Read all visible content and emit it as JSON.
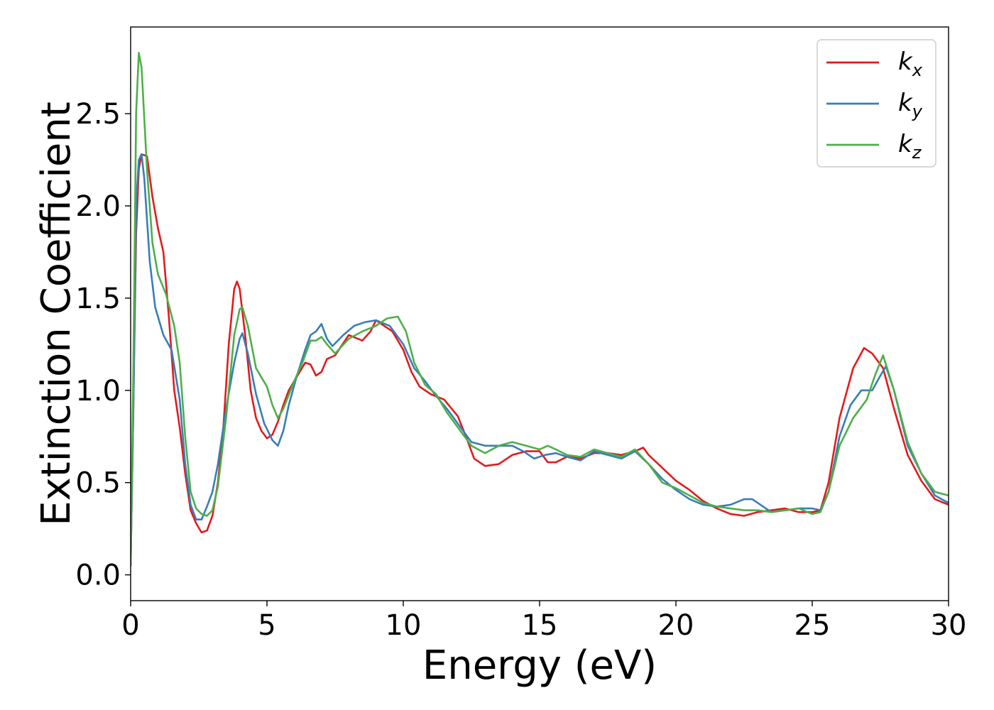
{
  "chart_data": {
    "type": "line",
    "title": "",
    "xlabel": "Energy (eV)",
    "ylabel": "Extinction Coefficient",
    "xlim": [
      0,
      30
    ],
    "ylim": [
      -0.14,
      2.97
    ],
    "xticks": [
      0,
      5,
      10,
      15,
      20,
      25,
      30
    ],
    "xtick_labels": [
      "0",
      "5",
      "10",
      "15",
      "20",
      "25",
      "30"
    ],
    "yticks": [
      0.0,
      0.5,
      1.0,
      1.5,
      2.0,
      2.5
    ],
    "ytick_labels": [
      "0.0",
      "0.5",
      "1.0",
      "1.5",
      "2.0",
      "2.5"
    ],
    "grid": false,
    "legend_position": "top-right",
    "series": [
      {
        "name": "k_x",
        "legend_base": "k",
        "legend_sub": "x",
        "color": "#e41a1c",
        "points": [
          [
            0,
            0.05
          ],
          [
            0.1,
            0.9
          ],
          [
            0.2,
            1.85
          ],
          [
            0.3,
            2.2
          ],
          [
            0.4,
            2.28
          ],
          [
            0.6,
            2.27
          ],
          [
            0.8,
            2.05
          ],
          [
            1.0,
            1.88
          ],
          [
            1.2,
            1.75
          ],
          [
            1.4,
            1.4
          ],
          [
            1.6,
            1.0
          ],
          [
            1.8,
            0.8
          ],
          [
            2.0,
            0.55
          ],
          [
            2.2,
            0.35
          ],
          [
            2.4,
            0.28
          ],
          [
            2.6,
            0.23
          ],
          [
            2.8,
            0.24
          ],
          [
            3.0,
            0.32
          ],
          [
            3.2,
            0.5
          ],
          [
            3.4,
            0.8
          ],
          [
            3.6,
            1.25
          ],
          [
            3.8,
            1.55
          ],
          [
            3.9,
            1.59
          ],
          [
            4.0,
            1.55
          ],
          [
            4.2,
            1.3
          ],
          [
            4.4,
            1.0
          ],
          [
            4.6,
            0.85
          ],
          [
            4.8,
            0.78
          ],
          [
            5.0,
            0.74
          ],
          [
            5.2,
            0.76
          ],
          [
            5.4,
            0.83
          ],
          [
            5.6,
            0.92
          ],
          [
            5.8,
            1.0
          ],
          [
            6.0,
            1.05
          ],
          [
            6.2,
            1.1
          ],
          [
            6.4,
            1.15
          ],
          [
            6.6,
            1.14
          ],
          [
            6.8,
            1.08
          ],
          [
            7.0,
            1.1
          ],
          [
            7.2,
            1.17
          ],
          [
            7.5,
            1.19
          ],
          [
            8.0,
            1.3
          ],
          [
            8.5,
            1.27
          ],
          [
            8.8,
            1.32
          ],
          [
            9.0,
            1.38
          ],
          [
            9.3,
            1.35
          ],
          [
            9.6,
            1.32
          ],
          [
            10.0,
            1.22
          ],
          [
            10.3,
            1.1
          ],
          [
            10.6,
            1.02
          ],
          [
            11.0,
            0.98
          ],
          [
            11.5,
            0.95
          ],
          [
            12.0,
            0.86
          ],
          [
            12.3,
            0.75
          ],
          [
            12.6,
            0.63
          ],
          [
            13.0,
            0.59
          ],
          [
            13.5,
            0.6
          ],
          [
            14.0,
            0.65
          ],
          [
            14.5,
            0.67
          ],
          [
            15.0,
            0.67
          ],
          [
            15.3,
            0.61
          ],
          [
            15.6,
            0.61
          ],
          [
            16.0,
            0.64
          ],
          [
            16.5,
            0.63
          ],
          [
            17.0,
            0.66
          ],
          [
            17.5,
            0.66
          ],
          [
            18.0,
            0.65
          ],
          [
            18.5,
            0.67
          ],
          [
            18.8,
            0.69
          ],
          [
            19.0,
            0.65
          ],
          [
            19.5,
            0.58
          ],
          [
            20.0,
            0.51
          ],
          [
            20.5,
            0.46
          ],
          [
            21.0,
            0.4
          ],
          [
            21.5,
            0.36
          ],
          [
            22.0,
            0.33
          ],
          [
            22.5,
            0.32
          ],
          [
            23.0,
            0.34
          ],
          [
            23.5,
            0.35
          ],
          [
            24.0,
            0.36
          ],
          [
            24.5,
            0.34
          ],
          [
            25.0,
            0.34
          ],
          [
            25.3,
            0.35
          ],
          [
            25.6,
            0.5
          ],
          [
            26.0,
            0.85
          ],
          [
            26.5,
            1.12
          ],
          [
            26.9,
            1.23
          ],
          [
            27.2,
            1.2
          ],
          [
            27.6,
            1.12
          ],
          [
            28.0,
            0.9
          ],
          [
            28.5,
            0.65
          ],
          [
            29.0,
            0.51
          ],
          [
            29.5,
            0.41
          ],
          [
            30.0,
            0.38
          ]
        ]
      },
      {
        "name": "k_y",
        "legend_base": "k",
        "legend_sub": "y",
        "color": "#377eb8",
        "points": [
          [
            0,
            0.05
          ],
          [
            0.1,
            0.9
          ],
          [
            0.2,
            2.0
          ],
          [
            0.3,
            2.25
          ],
          [
            0.4,
            2.28
          ],
          [
            0.5,
            2.15
          ],
          [
            0.7,
            1.7
          ],
          [
            0.9,
            1.45
          ],
          [
            1.2,
            1.3
          ],
          [
            1.5,
            1.22
          ],
          [
            1.8,
            0.95
          ],
          [
            2.0,
            0.6
          ],
          [
            2.2,
            0.38
          ],
          [
            2.4,
            0.3
          ],
          [
            2.6,
            0.3
          ],
          [
            2.8,
            0.37
          ],
          [
            3.0,
            0.45
          ],
          [
            3.2,
            0.6
          ],
          [
            3.5,
            0.9
          ],
          [
            3.8,
            1.15
          ],
          [
            4.0,
            1.28
          ],
          [
            4.1,
            1.31
          ],
          [
            4.3,
            1.2
          ],
          [
            4.6,
            0.98
          ],
          [
            4.9,
            0.82
          ],
          [
            5.2,
            0.73
          ],
          [
            5.4,
            0.7
          ],
          [
            5.6,
            0.78
          ],
          [
            5.8,
            0.92
          ],
          [
            6.1,
            1.08
          ],
          [
            6.4,
            1.22
          ],
          [
            6.6,
            1.3
          ],
          [
            6.8,
            1.32
          ],
          [
            7.0,
            1.36
          ],
          [
            7.2,
            1.28
          ],
          [
            7.4,
            1.24
          ],
          [
            7.8,
            1.3
          ],
          [
            8.2,
            1.35
          ],
          [
            8.6,
            1.37
          ],
          [
            9.0,
            1.38
          ],
          [
            9.5,
            1.35
          ],
          [
            10.0,
            1.25
          ],
          [
            10.4,
            1.12
          ],
          [
            10.8,
            1.05
          ],
          [
            11.2,
            0.97
          ],
          [
            11.6,
            0.9
          ],
          [
            12.0,
            0.82
          ],
          [
            12.5,
            0.72
          ],
          [
            13.0,
            0.7
          ],
          [
            13.5,
            0.7
          ],
          [
            14.0,
            0.7
          ],
          [
            14.4,
            0.67
          ],
          [
            14.8,
            0.63
          ],
          [
            15.2,
            0.65
          ],
          [
            15.6,
            0.66
          ],
          [
            16.0,
            0.64
          ],
          [
            16.5,
            0.62
          ],
          [
            17.0,
            0.67
          ],
          [
            17.5,
            0.65
          ],
          [
            18.0,
            0.63
          ],
          [
            18.5,
            0.67
          ],
          [
            19.0,
            0.6
          ],
          [
            19.5,
            0.52
          ],
          [
            20.0,
            0.46
          ],
          [
            20.5,
            0.41
          ],
          [
            21.0,
            0.38
          ],
          [
            21.5,
            0.37
          ],
          [
            22.0,
            0.38
          ],
          [
            22.5,
            0.41
          ],
          [
            22.8,
            0.41
          ],
          [
            23.0,
            0.39
          ],
          [
            23.5,
            0.34
          ],
          [
            24.0,
            0.35
          ],
          [
            24.5,
            0.36
          ],
          [
            25.0,
            0.36
          ],
          [
            25.3,
            0.35
          ],
          [
            25.6,
            0.45
          ],
          [
            26.0,
            0.75
          ],
          [
            26.4,
            0.92
          ],
          [
            26.8,
            1.0
          ],
          [
            27.2,
            1.0
          ],
          [
            27.5,
            1.08
          ],
          [
            27.7,
            1.13
          ],
          [
            28.0,
            1.0
          ],
          [
            28.5,
            0.7
          ],
          [
            29.0,
            0.55
          ],
          [
            29.5,
            0.43
          ],
          [
            30.0,
            0.39
          ]
        ]
      },
      {
        "name": "k_z",
        "legend_base": "k",
        "legend_sub": "z",
        "color": "#4daf4a",
        "points": [
          [
            0,
            0.05
          ],
          [
            0.1,
            1.1
          ],
          [
            0.2,
            2.5
          ],
          [
            0.3,
            2.83
          ],
          [
            0.4,
            2.75
          ],
          [
            0.6,
            2.2
          ],
          [
            0.8,
            1.8
          ],
          [
            1.0,
            1.63
          ],
          [
            1.3,
            1.52
          ],
          [
            1.6,
            1.35
          ],
          [
            1.8,
            1.15
          ],
          [
            2.0,
            0.75
          ],
          [
            2.2,
            0.45
          ],
          [
            2.4,
            0.36
          ],
          [
            2.6,
            0.33
          ],
          [
            2.8,
            0.32
          ],
          [
            3.0,
            0.35
          ],
          [
            3.2,
            0.48
          ],
          [
            3.5,
            0.85
          ],
          [
            3.8,
            1.3
          ],
          [
            4.0,
            1.44
          ],
          [
            4.1,
            1.45
          ],
          [
            4.3,
            1.35
          ],
          [
            4.6,
            1.12
          ],
          [
            5.0,
            1.02
          ],
          [
            5.2,
            0.92
          ],
          [
            5.4,
            0.85
          ],
          [
            5.6,
            0.9
          ],
          [
            6.0,
            1.05
          ],
          [
            6.3,
            1.15
          ],
          [
            6.6,
            1.27
          ],
          [
            6.8,
            1.27
          ],
          [
            7.0,
            1.29
          ],
          [
            7.2,
            1.25
          ],
          [
            7.5,
            1.2
          ],
          [
            8.0,
            1.28
          ],
          [
            8.5,
            1.32
          ],
          [
            9.0,
            1.35
          ],
          [
            9.4,
            1.39
          ],
          [
            9.8,
            1.4
          ],
          [
            10.1,
            1.32
          ],
          [
            10.4,
            1.15
          ],
          [
            10.8,
            1.03
          ],
          [
            11.2,
            0.98
          ],
          [
            11.6,
            0.88
          ],
          [
            12.0,
            0.8
          ],
          [
            12.5,
            0.7
          ],
          [
            13.0,
            0.66
          ],
          [
            13.5,
            0.7
          ],
          [
            14.0,
            0.72
          ],
          [
            14.5,
            0.7
          ],
          [
            15.0,
            0.68
          ],
          [
            15.3,
            0.7
          ],
          [
            15.6,
            0.68
          ],
          [
            16.0,
            0.65
          ],
          [
            16.5,
            0.64
          ],
          [
            17.0,
            0.68
          ],
          [
            17.5,
            0.66
          ],
          [
            18.0,
            0.64
          ],
          [
            18.5,
            0.68
          ],
          [
            19.0,
            0.6
          ],
          [
            19.5,
            0.5
          ],
          [
            20.0,
            0.47
          ],
          [
            20.5,
            0.43
          ],
          [
            21.0,
            0.39
          ],
          [
            21.5,
            0.37
          ],
          [
            22.0,
            0.36
          ],
          [
            22.5,
            0.35
          ],
          [
            23.0,
            0.35
          ],
          [
            23.5,
            0.34
          ],
          [
            24.0,
            0.35
          ],
          [
            24.5,
            0.36
          ],
          [
            25.0,
            0.33
          ],
          [
            25.3,
            0.34
          ],
          [
            25.6,
            0.45
          ],
          [
            26.0,
            0.7
          ],
          [
            26.5,
            0.85
          ],
          [
            27.0,
            0.95
          ],
          [
            27.3,
            1.08
          ],
          [
            27.6,
            1.19
          ],
          [
            28.0,
            1.0
          ],
          [
            28.5,
            0.72
          ],
          [
            29.0,
            0.55
          ],
          [
            29.5,
            0.45
          ],
          [
            30.0,
            0.43
          ]
        ]
      }
    ]
  }
}
